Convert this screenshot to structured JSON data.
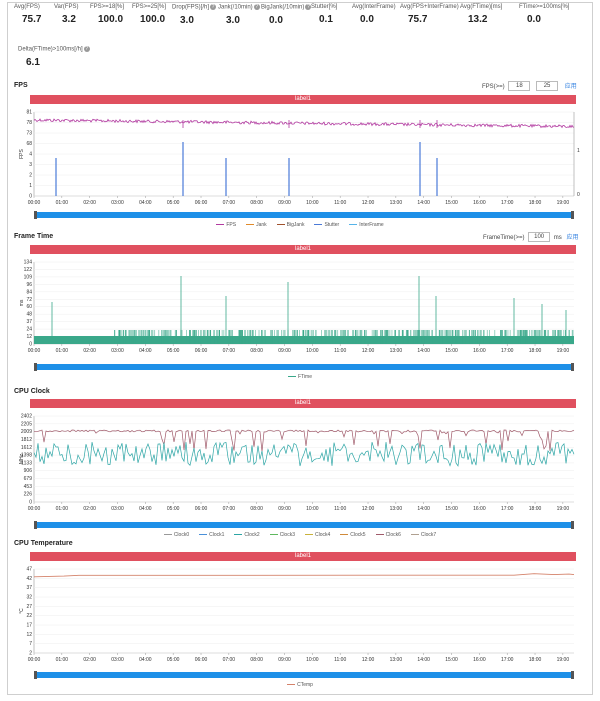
{
  "stats": [
    {
      "label": "Avg(FPS)",
      "value": "75.7"
    },
    {
      "label": "Var(FPS)",
      "value": "3.2"
    },
    {
      "label": "FPS>=18[%]",
      "value": "100.0"
    },
    {
      "label": "FPS>=25[%]",
      "value": "100.0"
    },
    {
      "label": "Drop(FPS)[/h]",
      "value": "3.0",
      "help": true
    },
    {
      "label": "Jank(/10min)",
      "value": "3.0",
      "help": true
    },
    {
      "label": "BigJank(/10min)",
      "value": "0.0",
      "help": true
    },
    {
      "label": "Stutter[%]",
      "value": "0.1"
    },
    {
      "label": "Avg(InterFrame)",
      "value": "0.0"
    },
    {
      "label": "Avg(FPS+InterFrame)",
      "value": "75.7"
    },
    {
      "label": "Avg(FTime)[ms]",
      "value": "13.2"
    },
    {
      "label": "FTime>=100ms[%]",
      "value": "0.0"
    }
  ],
  "delta": {
    "label": "Delta(FTime)>100ms[/h]",
    "value": "6.1"
  },
  "help_glyph": "?",
  "time_ticks": [
    "00:00",
    "01:00",
    "02:00",
    "03:00",
    "04:00",
    "05:00",
    "06:00",
    "07:00",
    "08:00",
    "09:00",
    "10:00",
    "11:00",
    "12:00",
    "13:00",
    "14:00",
    "15:00",
    "16:00",
    "17:00",
    "18:00",
    "19:00"
  ],
  "fps_section": {
    "title": "FPS",
    "label_bar": "label1",
    "ctrl_label": "FPS(>=)",
    "ctrl_v1": "18",
    "ctrl_v2": "25",
    "apply": "应用",
    "y_ticks": [
      "81",
      "78",
      "73",
      "68",
      "4",
      "3",
      "2",
      "1",
      "0"
    ],
    "y_label": "FPS",
    "y2_ticks": [
      "1",
      "0"
    ],
    "y2_label": "Jank",
    "legend": [
      {
        "name": "FPS",
        "color": "#b23aa0"
      },
      {
        "name": "Jank",
        "color": "#e08a2a"
      },
      {
        "name": "BigJank",
        "color": "#a0522d"
      },
      {
        "name": "Stutter",
        "color": "#4a7ad8"
      },
      {
        "name": "InterFrame",
        "color": "#56b4e9"
      }
    ]
  },
  "ft_section": {
    "title": "Frame Time",
    "label_bar": "label1",
    "ctrl_label": "FrameTime(>=)",
    "ctrl_v1": "100",
    "ctrl_unit": "ms",
    "apply": "应用",
    "y_ticks": [
      "134",
      "122",
      "109",
      "96",
      "84",
      "72",
      "60",
      "48",
      "37",
      "24",
      "12",
      "0"
    ],
    "y_label": "ms",
    "legend": [
      {
        "name": "FTime",
        "color": "#3aa88a"
      }
    ]
  },
  "cpu_section": {
    "title": "CPU Clock",
    "label_bar": "label1",
    "y_ticks": [
      "2402",
      "2205",
      "2009",
      "1812",
      "1612",
      "1398",
      "1133",
      "906",
      "679",
      "453",
      "226",
      "0"
    ],
    "y_label": "MHz",
    "legend": [
      {
        "name": "Clock0",
        "color": "#999999"
      },
      {
        "name": "Clock1",
        "color": "#4a90d9"
      },
      {
        "name": "Clock2",
        "color": "#2ca5a5"
      },
      {
        "name": "Clock3",
        "color": "#5fb85f"
      },
      {
        "name": "Clock4",
        "color": "#c9b23a"
      },
      {
        "name": "Clock5",
        "color": "#d08a3a"
      },
      {
        "name": "Clock6",
        "color": "#a05a6a"
      },
      {
        "name": "Clock7",
        "color": "#b0a090"
      }
    ]
  },
  "temp_section": {
    "title": "CPU Temperature",
    "label_bar": "label1",
    "y_ticks": [
      "47",
      "42",
      "37",
      "32",
      "27",
      "22",
      "17",
      "12",
      "7",
      "2"
    ],
    "y_label": "°C",
    "legend": [
      {
        "name": "CTemp",
        "color": "#d4826a"
      }
    ]
  },
  "chart_data": [
    {
      "type": "line",
      "title": "FPS",
      "xlabel": "",
      "ylabel": "FPS",
      "x": [
        "00:00",
        "01:00",
        "02:00",
        "03:00",
        "04:00",
        "05:00",
        "06:00",
        "07:00",
        "08:00",
        "09:00",
        "10:00",
        "11:00",
        "12:00",
        "13:00",
        "14:00",
        "15:00",
        "16:00",
        "17:00",
        "18:00",
        "19:00"
      ],
      "series": [
        {
          "name": "FPS",
          "values": [
            77,
            76.5,
            76,
            76,
            75.8,
            75.6,
            75.7,
            75.5,
            75.5,
            75.4,
            75.4,
            75.3,
            75.3,
            75.2,
            75.2,
            75.1,
            75.1,
            75.0,
            74.9,
            74.5
          ]
        },
        {
          "name": "Stutter",
          "values": [
            0,
            1,
            0,
            0,
            0,
            1,
            0,
            1,
            0,
            1,
            0,
            0,
            0,
            0,
            1,
            1,
            0,
            0,
            0,
            0
          ]
        }
      ]
    },
    {
      "type": "bar",
      "title": "Frame Time",
      "ylabel": "ms",
      "series": [
        {
          "name": "FTime",
          "values": [
            13,
            13,
            13,
            13,
            13,
            13,
            13,
            13,
            13,
            13,
            13,
            13,
            13,
            13,
            13,
            13,
            13,
            13,
            13,
            13
          ]
        }
      ]
    },
    {
      "type": "line",
      "title": "CPU Clock",
      "ylabel": "MHz",
      "series": [
        {
          "name": "Clock0",
          "values": [
            2009,
            2009,
            2009,
            2009,
            2009,
            2009,
            2009,
            2009,
            2009,
            2009,
            2009,
            2009,
            2009,
            2009,
            2009,
            2009,
            2009,
            2009,
            2009,
            2009
          ]
        },
        {
          "name": "Clock2",
          "values": [
            1612,
            1612,
            1612,
            1612,
            1612,
            1612,
            1612,
            1612,
            1612,
            1612,
            1612,
            1612,
            1612,
            1612,
            1612,
            1612,
            1612,
            1612,
            1612,
            1612
          ]
        }
      ]
    },
    {
      "type": "line",
      "title": "CPU Temperature",
      "ylabel": "°C",
      "series": [
        {
          "name": "CTemp",
          "values": [
            43,
            44,
            44,
            44,
            44,
            44,
            44,
            44,
            44,
            44,
            44,
            44,
            44,
            44,
            44,
            44,
            44,
            44,
            45,
            45
          ]
        }
      ]
    }
  ]
}
